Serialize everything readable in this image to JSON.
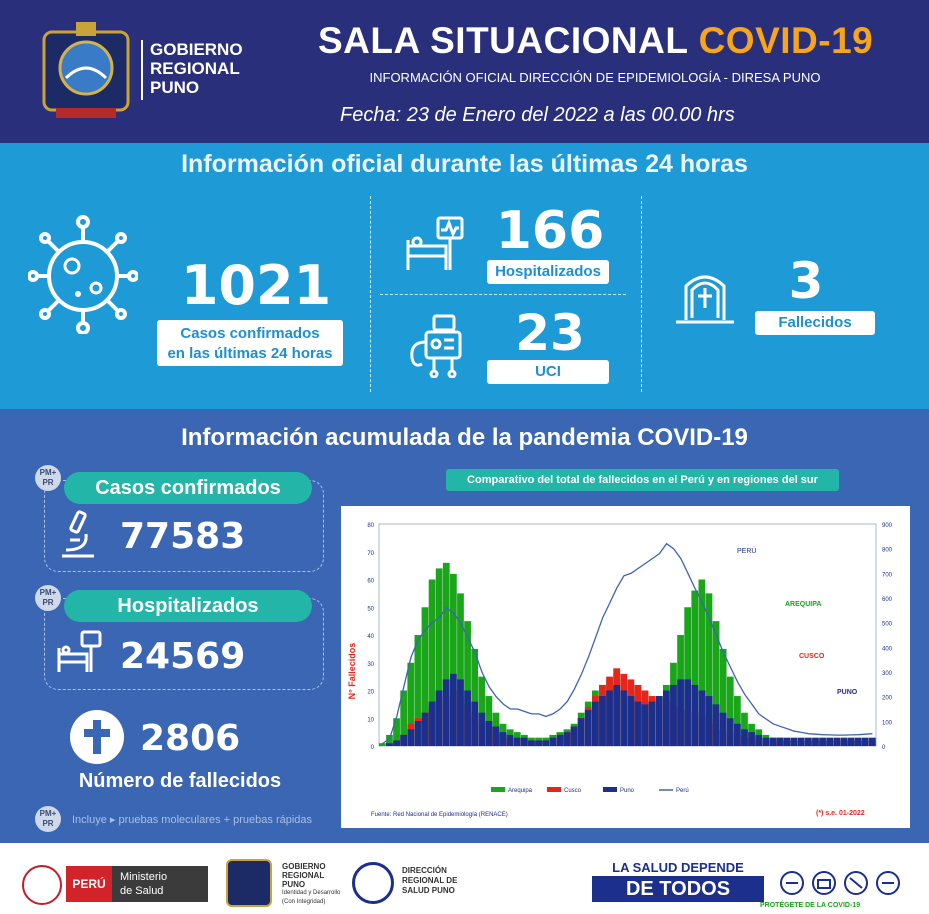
{
  "header": {
    "gov_line1": "GOBIERNO",
    "gov_line2": "REGIONAL",
    "gov_line3": "PUNO",
    "title_main": "SALA SITUACIONAL ",
    "title_covid": "COVID-19",
    "subtitle": "INFORMACIÓN OFICIAL DIRECCIÓN DE EPIDEMIOLOGÍA - DIRESA PUNO",
    "date": "Fecha: 23 de Enero del 2022 a las 00.00 hrs"
  },
  "last24": {
    "title": "Información oficial durante las últimas 24 horas",
    "cases_value": "1021",
    "cases_label_1": "Casos confirmados",
    "cases_label_2": "en las últimas 24 horas",
    "hosp_value": "166",
    "hosp_label": "Hospitalizados",
    "uci_value": "23",
    "uci_label": "UCI",
    "deaths_value": "3",
    "deaths_label": "Fallecidos"
  },
  "cumulative": {
    "title": "Información acumulada de la pandemia COVID-19",
    "badge_line1": "PM+",
    "badge_line2": "PR",
    "cases_label": "Casos confirmados",
    "cases_value": "77583",
    "hosp_label": "Hospitalizados",
    "hosp_value": "24569",
    "deaths_value": "2806",
    "deaths_label": "Número de fallecidos",
    "note": "Incluye ▸ pruebas moleculares + pruebas rápidas"
  },
  "chart_data": {
    "type": "bar",
    "caption": "Comparativo del total de fallecidos en el Perú y en regiones del sur",
    "ylabel": "N° Fallecidos",
    "ylim_left": [
      0,
      80
    ],
    "ylim_right": [
      0,
      900
    ],
    "left_ticks": [
      "0",
      "10",
      "20",
      "30",
      "40",
      "50",
      "60",
      "70",
      "80"
    ],
    "right_ticks": [
      "0",
      "100",
      "200",
      "300",
      "400",
      "500",
      "600",
      "700",
      "800",
      "900"
    ],
    "series": [
      {
        "name": "Arequipa",
        "color": "#1aa51a"
      },
      {
        "name": "Cusco",
        "color": "#e8251b"
      },
      {
        "name": "Puno",
        "color": "#1d2f8c"
      },
      {
        "name": "Perú",
        "color": "#3f63b5"
      }
    ],
    "region_labels": [
      "PERÚ",
      "AREQUIPA",
      "CUSCO",
      "PUNO"
    ],
    "source": "Fuente: Red Nacional de Epidemiología (RENACE)",
    "footnote": "(*) s.e. 01-2022",
    "peru_weekly": [
      10,
      30,
      120,
      240,
      360,
      430,
      470,
      500,
      520,
      560,
      540,
      500,
      440,
      380,
      300,
      240,
      200,
      170,
      150,
      150,
      140,
      130,
      130,
      120,
      130,
      150,
      180,
      230,
      290,
      360,
      440,
      520,
      580,
      640,
      690,
      700,
      720,
      740,
      760,
      780,
      820,
      800,
      760,
      700,
      640,
      580,
      520,
      450,
      380,
      320,
      260,
      210,
      170,
      130,
      110,
      90,
      80,
      70,
      60,
      55,
      50,
      48,
      46,
      45,
      44,
      44,
      45,
      46,
      48,
      50
    ],
    "arequipa_weekly": [
      1,
      4,
      10,
      20,
      30,
      40,
      50,
      60,
      64,
      66,
      62,
      55,
      45,
      35,
      25,
      18,
      12,
      8,
      6,
      5,
      4,
      3,
      3,
      3,
      4,
      5,
      6,
      8,
      12,
      16,
      20,
      22,
      24,
      26,
      24,
      22,
      20,
      18,
      16,
      18,
      22,
      30,
      40,
      50,
      56,
      60,
      55,
      45,
      35,
      25,
      18,
      12,
      8,
      6,
      4,
      3,
      3,
      2,
      2,
      2,
      2,
      2,
      2,
      2,
      2,
      2,
      2,
      2,
      2,
      2
    ],
    "cusco_weekly": [
      0,
      1,
      2,
      4,
      8,
      10,
      12,
      14,
      16,
      18,
      20,
      18,
      15,
      12,
      9,
      7,
      5,
      4,
      3,
      3,
      2,
      2,
      2,
      2,
      3,
      4,
      5,
      7,
      10,
      14,
      18,
      22,
      25,
      28,
      26,
      24,
      22,
      20,
      18,
      17,
      16,
      15,
      14,
      13,
      12,
      11,
      10,
      8,
      6,
      5,
      4,
      3,
      3,
      2,
      2,
      2,
      2,
      2,
      2,
      2,
      2,
      2,
      2,
      2,
      2,
      2,
      2,
      2,
      2,
      2
    ],
    "puno_weekly": [
      0,
      1,
      2,
      4,
      6,
      9,
      12,
      16,
      20,
      24,
      26,
      24,
      20,
      16,
      12,
      9,
      7,
      5,
      4,
      3,
      3,
      2,
      2,
      2,
      3,
      4,
      5,
      7,
      10,
      13,
      16,
      18,
      20,
      22,
      20,
      18,
      16,
      15,
      16,
      18,
      20,
      22,
      24,
      24,
      22,
      20,
      18,
      15,
      12,
      10,
      8,
      6,
      5,
      4,
      3,
      3,
      3,
      3,
      3,
      3,
      3,
      3,
      3,
      3,
      3,
      3,
      3,
      3,
      3,
      3
    ]
  },
  "footer": {
    "peru": "PERÚ",
    "ministerio_1": "Ministerio",
    "ministerio_2": "de Salud",
    "gr_1": "GOBIERNO",
    "gr_2": "REGIONAL",
    "gr_3": "PUNO",
    "gr_4": "Identidad y Desarrollo",
    "gr_5": "(Con Integridad)",
    "diresa_1": "DIRECCIÓN",
    "diresa_2": "REGIONAL DE",
    "diresa_3": "SALUD PUNO",
    "campaign_1": "LA SALUD DEPENDE",
    "campaign_2": "DE TODOS",
    "campaign_3": "PROTÉGETE DE LA COVID-19"
  }
}
